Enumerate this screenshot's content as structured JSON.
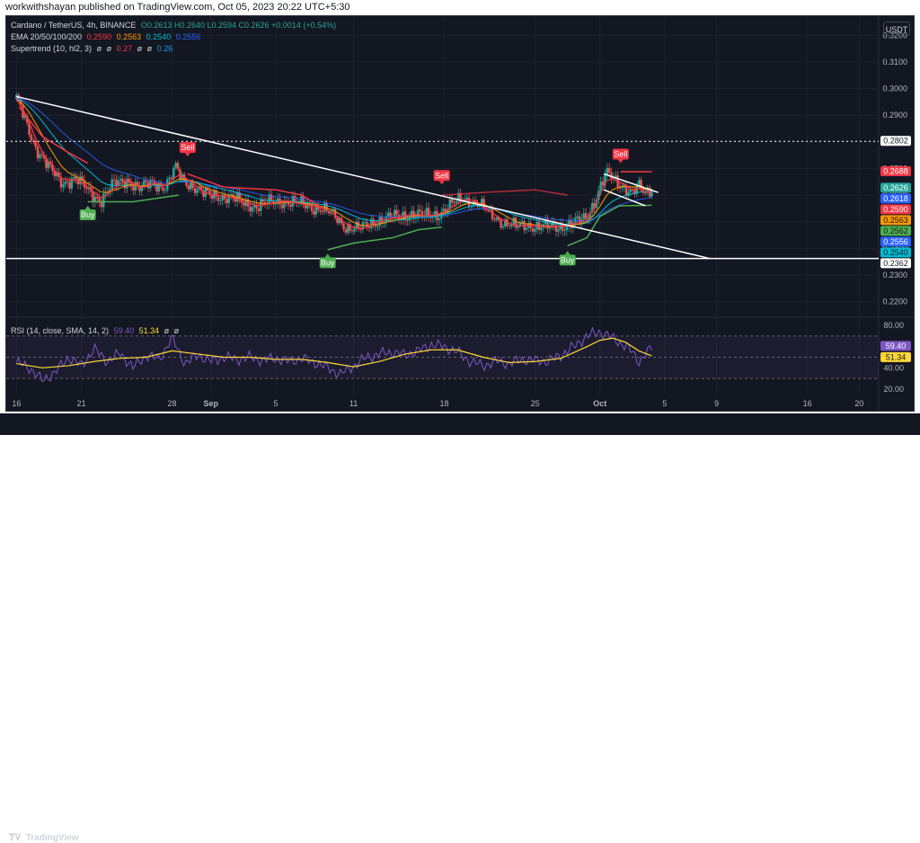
{
  "header": {
    "published_text": "workwithshayan published on TradingView.com, Oct 05, 2023 20:22 UTC+5:30"
  },
  "legend": {
    "symbol": "Cardano / TetherUS, 4h, BINANCE",
    "ohlc": "O0.2613 H0.2640 L0.2594 C0.2626 +0.0014 (+0.54%)",
    "ema_label": "EMA 20/50/100/200",
    "ema_values": [
      "0.2590",
      "0.2563",
      "0.2540",
      "0.2556"
    ],
    "supertrend_label": "Supertrend (10, hl2, 3)",
    "supertrend_values": [
      "ø",
      "ø",
      "0.27",
      "ø",
      "ø",
      "0.26"
    ],
    "rsi_label": "RSI (14, close, SMA, 14, 2)",
    "rsi_values": [
      "59.40",
      "51.34",
      "ø",
      "ø"
    ]
  },
  "currency_button": "USDT",
  "footer": {
    "brand": "TradingView"
  },
  "colors": {
    "background": "#131722",
    "candle_up": "#26a69a",
    "candle_down": "#ef5350",
    "ema20": "#f23645",
    "ema50": "#ff9800",
    "ema100": "#00bcd4",
    "ema200": "#2962ff",
    "supertrend_up": "#4caf50",
    "supertrend_down": "#f23645",
    "rsi": "#7e57c2",
    "rsi_ma": "#fdd835",
    "trendline": "#ffffff"
  },
  "chart_data": [
    {
      "type": "candlestick",
      "title": "Cardano / TetherUS, 4h, BINANCE",
      "ylim": [
        0.2145,
        0.3265
      ],
      "y_ticks": [
        0.22,
        0.23,
        0.24,
        0.25,
        0.26,
        0.27,
        0.28,
        0.29,
        0.3,
        0.31,
        0.32
      ],
      "x_tick_labels": [
        "16",
        "21",
        "28",
        "Sep",
        "5",
        "11",
        "18",
        "25",
        "Oct",
        "5",
        "9",
        "16",
        "20"
      ],
      "x_tick_positions_days": [
        0,
        5,
        12,
        15,
        20,
        26,
        33,
        40,
        45,
        50,
        54,
        61,
        65
      ],
      "price_close_path": [
        [
          0,
          0.296
        ],
        [
          0.5,
          0.29
        ],
        [
          1.5,
          0.278
        ],
        [
          2.5,
          0.27
        ],
        [
          3.5,
          0.265
        ],
        [
          4.5,
          0.266
        ],
        [
          5.5,
          0.262
        ],
        [
          6.5,
          0.258
        ],
        [
          7.5,
          0.264
        ],
        [
          8.5,
          0.266
        ],
        [
          9.5,
          0.262
        ],
        [
          10.5,
          0.265
        ],
        [
          11.5,
          0.263
        ],
        [
          12.3,
          0.27
        ],
        [
          12.8,
          0.266
        ],
        [
          13.5,
          0.264
        ],
        [
          14.5,
          0.26
        ],
        [
          15.5,
          0.26
        ],
        [
          16.5,
          0.259
        ],
        [
          17.5,
          0.257
        ],
        [
          18.5,
          0.256
        ],
        [
          19.5,
          0.257
        ],
        [
          20.5,
          0.258
        ],
        [
          21.5,
          0.257
        ],
        [
          22.5,
          0.256
        ],
        [
          23.5,
          0.255
        ],
        [
          24.5,
          0.252
        ],
        [
          25.5,
          0.248
        ],
        [
          26.5,
          0.247
        ],
        [
          27.5,
          0.25
        ],
        [
          28.5,
          0.251
        ],
        [
          29.5,
          0.252
        ],
        [
          30.5,
          0.253
        ],
        [
          31.5,
          0.252
        ],
        [
          32.5,
          0.253
        ],
        [
          33.5,
          0.256
        ],
        [
          34.5,
          0.259
        ],
        [
          35.5,
          0.257
        ],
        [
          36.5,
          0.253
        ],
        [
          37.5,
          0.25
        ],
        [
          38.5,
          0.248
        ],
        [
          39.5,
          0.249
        ],
        [
          40.5,
          0.248
        ],
        [
          41.5,
          0.248
        ],
        [
          42.5,
          0.249
        ],
        [
          43.5,
          0.25
        ],
        [
          44.0,
          0.252
        ],
        [
          44.5,
          0.257
        ],
        [
          45.0,
          0.263
        ],
        [
          45.5,
          0.268
        ],
        [
          46.0,
          0.266
        ],
        [
          46.5,
          0.264
        ],
        [
          47.0,
          0.263
        ],
        [
          47.5,
          0.261
        ],
        [
          48.0,
          0.263
        ],
        [
          48.5,
          0.26
        ],
        [
          49.0,
          0.2626
        ]
      ],
      "horizontal_levels": [
        0.2802,
        0.2362
      ],
      "price_labels": [
        {
          "value": 0.2802,
          "text": "0.2802",
          "color": "#ffffff",
          "text_color": "#131722"
        },
        {
          "value": 0.2688,
          "text": "0.2688",
          "color": "#f23645",
          "text_color": "#ffffff"
        },
        {
          "value": 0.2626,
          "text": "0.2626",
          "color": "#26a69a",
          "text_color": "#ffffff"
        },
        {
          "value": 0.2618,
          "text": "0.2618",
          "color": "#2962ff",
          "text_color": "#ffffff"
        },
        {
          "value": 0.259,
          "text": "0.2590",
          "color": "#f23645",
          "text_color": "#ffffff"
        },
        {
          "value": 0.2563,
          "text": "0.2563",
          "color": "#ff9800",
          "text_color": "#131722"
        },
        {
          "value": 0.2562,
          "text": "0.2562",
          "color": "#4caf50",
          "text_color": "#131722"
        },
        {
          "value": 0.2556,
          "text": "0.2556",
          "color": "#2962ff",
          "text_color": "#ffffff"
        },
        {
          "value": 0.254,
          "text": "0.2540",
          "color": "#00bcd4",
          "text_color": "#131722"
        },
        {
          "value": 0.2362,
          "text": "0.2362",
          "color": "#ffffff",
          "text_color": "#131722"
        }
      ],
      "signals": [
        {
          "label": "Buy",
          "day": 5.5,
          "price": 0.256,
          "kind": "buy"
        },
        {
          "label": "Sell",
          "day": 13.2,
          "price": 0.2745,
          "kind": "sell"
        },
        {
          "label": "Buy",
          "day": 24.0,
          "price": 0.238,
          "kind": "buy"
        },
        {
          "label": "Sell",
          "day": 32.8,
          "price": 0.264,
          "kind": "sell"
        },
        {
          "label": "Buy",
          "day": 42.5,
          "price": 0.239,
          "kind": "buy"
        },
        {
          "label": "Sell",
          "day": 46.6,
          "price": 0.272,
          "kind": "sell"
        }
      ],
      "trendlines": [
        {
          "from": [
            0,
            0.297
          ],
          "to": [
            53.5,
            0.2362
          ]
        },
        {
          "from": [
            45.3,
            0.268
          ],
          "to": [
            49.5,
            0.261
          ]
        },
        {
          "from": [
            45.3,
            0.262
          ],
          "to": [
            48.5,
            0.256
          ]
        }
      ]
    },
    {
      "type": "line",
      "title": "RSI (14, close, SMA, 14, 2)",
      "ylim": [
        14,
        86
      ],
      "y_ticks": [
        20.0,
        40.0,
        60.0,
        80.0
      ],
      "bands": {
        "upper": 70,
        "mid": 50,
        "lower": 30
      },
      "series": [
        {
          "name": "RSI",
          "values": [
            [
              0,
              45
            ],
            [
              1,
              40
            ],
            [
              2,
              28
            ],
            [
              3,
              36
            ],
            [
              4,
              50
            ],
            [
              5,
              42
            ],
            [
              6,
              58
            ],
            [
              7,
              46
            ],
            [
              8,
              54
            ],
            [
              9,
              40
            ],
            [
              10,
              52
            ],
            [
              11,
              48
            ],
            [
              12,
              68
            ],
            [
              13,
              44
            ],
            [
              14,
              52
            ],
            [
              15,
              46
            ],
            [
              16,
              50
            ],
            [
              17,
              48
            ],
            [
              18,
              50
            ],
            [
              19,
              47
            ],
            [
              20,
              49
            ],
            [
              21,
              46
            ],
            [
              22,
              49
            ],
            [
              23,
              45
            ],
            [
              24,
              40
            ],
            [
              25,
              34
            ],
            [
              26,
              42
            ],
            [
              27,
              50
            ],
            [
              28,
              53
            ],
            [
              29,
              55
            ],
            [
              30,
              52
            ],
            [
              31,
              56
            ],
            [
              32,
              62
            ],
            [
              33,
              60
            ],
            [
              34,
              55
            ],
            [
              35,
              46
            ],
            [
              36,
              42
            ],
            [
              37,
              46
            ],
            [
              38,
              44
            ],
            [
              39,
              48
            ],
            [
              40,
              47
            ],
            [
              41,
              46
            ],
            [
              42,
              52
            ],
            [
              43,
              60
            ],
            [
              44,
              70
            ],
            [
              45,
              74
            ],
            [
              46,
              68
            ],
            [
              47,
              60
            ],
            [
              47.5,
              55
            ],
            [
              48,
              46
            ],
            [
              48.5,
              52
            ],
            [
              49,
              59.4
            ]
          ]
        },
        {
          "name": "RSI-based MA",
          "values": [
            [
              0,
              44
            ],
            [
              2,
              40
            ],
            [
              4,
              42
            ],
            [
              6,
              46
            ],
            [
              8,
              49
            ],
            [
              10,
              50
            ],
            [
              12,
              56
            ],
            [
              14,
              53
            ],
            [
              16,
              50
            ],
            [
              18,
              50
            ],
            [
              20,
              48
            ],
            [
              22,
              48
            ],
            [
              24,
              45
            ],
            [
              26,
              41
            ],
            [
              28,
              46
            ],
            [
              30,
              53
            ],
            [
              32,
              57
            ],
            [
              34,
              57
            ],
            [
              36,
              50
            ],
            [
              38,
              45
            ],
            [
              40,
              46
            ],
            [
              42,
              49
            ],
            [
              44,
              60
            ],
            [
              45,
              66
            ],
            [
              46,
              68
            ],
            [
              47,
              64
            ],
            [
              48,
              56
            ],
            [
              49,
              51.34
            ]
          ]
        }
      ],
      "value_labels": [
        {
          "value": 59.4,
          "text": "59.40",
          "color": "#7e57c2"
        },
        {
          "value": 51.34,
          "text": "51.34",
          "color": "#fdd835"
        }
      ]
    }
  ]
}
